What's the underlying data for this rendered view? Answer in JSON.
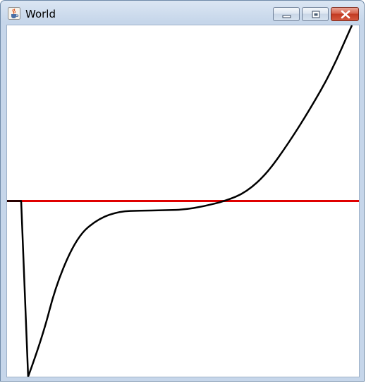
{
  "window": {
    "title": "World",
    "app_icon": "java-cup-icon",
    "controls": {
      "minimize_icon": "minimize-icon",
      "maximize_icon": "maximize-icon",
      "close_icon": "close-icon"
    },
    "close_color": "#c8402a"
  },
  "canvas": {
    "background": "#ffffff",
    "curve_color": "#000000",
    "baseline_color": "#e00000"
  },
  "chart_data": {
    "type": "line",
    "title": "",
    "xlabel": "",
    "ylabel": "",
    "grid": false,
    "series": [
      {
        "role": "curve",
        "color": "#000000",
        "x": [
          -1.0,
          -0.92,
          -0.88,
          -0.8,
          -0.72,
          -0.6,
          -0.48,
          -0.36,
          -0.24,
          -0.12,
          0.0,
          0.12,
          0.24,
          0.36,
          0.48,
          0.6,
          0.72,
          0.84,
          0.96
        ],
        "y": [
          0.0,
          0.0,
          -1.0,
          -0.78,
          -0.47,
          -0.2,
          -0.1,
          -0.058,
          -0.055,
          -0.053,
          -0.05,
          -0.03,
          0.0,
          0.05,
          0.16,
          0.33,
          0.52,
          0.73,
          1.0
        ]
      },
      {
        "role": "baseline",
        "color": "#e00000",
        "x": [
          -1.0,
          1.0
        ],
        "y": [
          0.0,
          0.0
        ]
      }
    ],
    "xlim": [
      -1.0,
      1.0
    ],
    "ylim": [
      -1.0,
      1.0
    ]
  }
}
